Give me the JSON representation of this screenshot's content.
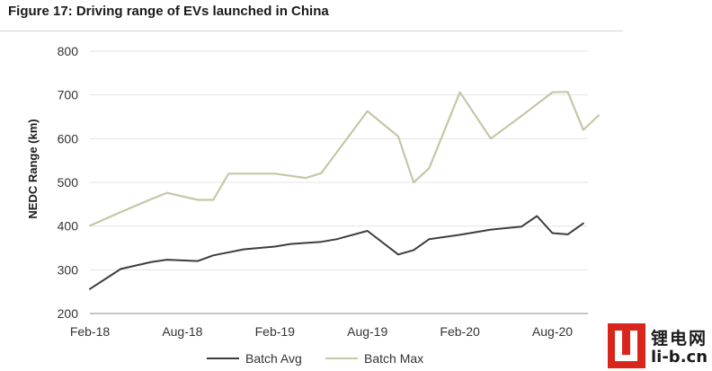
{
  "figure_title": "Figure 17: Driving range of EVs launched in China",
  "logo": {
    "cn_text": "锂电网",
    "url_text": "li-b.cn"
  },
  "chart_data": {
    "type": "line",
    "title": "Figure 17: Driving range of EVs launched in China",
    "xlabel": "",
    "ylabel": "NEDC Range (km)",
    "ylim": [
      200,
      800
    ],
    "yticks": [
      200,
      300,
      400,
      500,
      600,
      700,
      800
    ],
    "xticks": [
      "Feb-18",
      "Aug-18",
      "Feb-19",
      "Aug-19",
      "Feb-20",
      "Aug-20"
    ],
    "grid": true,
    "legend_position": "bottom",
    "series": [
      {
        "name": "Batch Avg",
        "color": "#3d3d3d",
        "points": [
          [
            "Feb-18",
            256
          ],
          [
            "Apr-18",
            302
          ],
          [
            "Jun-18",
            318
          ],
          [
            "Jul-18",
            323
          ],
          [
            "Sep-18",
            320
          ],
          [
            "Oct-18",
            333
          ],
          [
            "Dec-18",
            347
          ],
          [
            "Feb-19",
            353
          ],
          [
            "Mar-19",
            359
          ],
          [
            "May-19",
            364
          ],
          [
            "Jun-19",
            370
          ],
          [
            "Aug-19",
            389
          ],
          [
            "Oct-19",
            335
          ],
          [
            "Nov-19",
            345
          ],
          [
            "Dec-19",
            370
          ],
          [
            "Feb-20",
            380
          ],
          [
            "Apr-20",
            392
          ],
          [
            "Jun-20",
            399
          ],
          [
            "Jul-20",
            423
          ],
          [
            "Aug-20",
            384
          ],
          [
            "Sep-20",
            381
          ],
          [
            "Oct-20",
            406
          ]
        ]
      },
      {
        "name": "Batch Max",
        "color": "#c7c6a6",
        "points": [
          [
            "Feb-18",
            401
          ],
          [
            "Apr-18",
            432
          ],
          [
            "Jun-18",
            462
          ],
          [
            "Jul-18",
            476
          ],
          [
            "Sep-18",
            460
          ],
          [
            "Oct-18",
            460
          ],
          [
            "Nov-18",
            520
          ],
          [
            "Feb-19",
            520
          ],
          [
            "Apr-19",
            510
          ],
          [
            "May-19",
            521
          ],
          [
            "Aug-19",
            663
          ],
          [
            "Oct-19",
            605
          ],
          [
            "Nov-19",
            500
          ],
          [
            "Dec-19",
            532
          ],
          [
            "Feb-20",
            706
          ],
          [
            "Apr-20",
            600
          ],
          [
            "Jun-20",
            652
          ],
          [
            "Aug-20",
            706
          ],
          [
            "Sep-20",
            707
          ],
          [
            "Oct-20",
            620
          ],
          [
            "Nov-20",
            653
          ]
        ]
      }
    ]
  }
}
